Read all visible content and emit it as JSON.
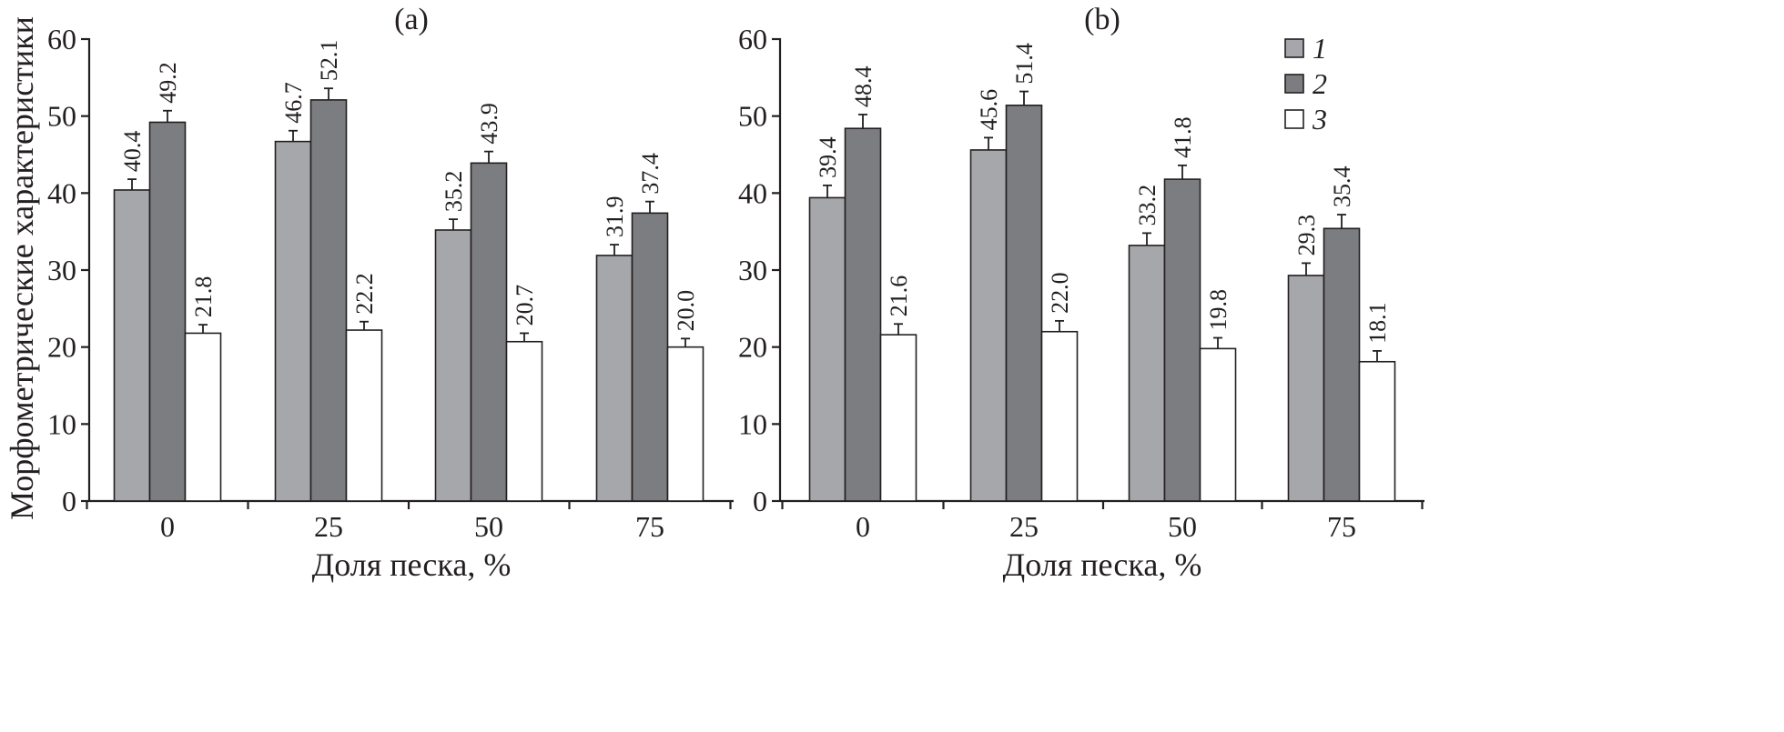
{
  "chart_data": [
    {
      "type": "bar",
      "title": "(a)",
      "xlabel": "Доля песка, %",
      "ylabel": "Морфометрические характеристики",
      "ylim": [
        0,
        60
      ],
      "yticks": [
        0,
        10,
        20,
        30,
        40,
        50,
        60
      ],
      "categories": [
        "0",
        "25",
        "50",
        "75"
      ],
      "series": [
        {
          "name": "1",
          "color": "#a6a7aa",
          "values": [
            40.4,
            46.7,
            35.2,
            31.9
          ],
          "errors": [
            1.4,
            1.4,
            1.4,
            1.4
          ]
        },
        {
          "name": "2",
          "color": "#7c7d80",
          "values": [
            49.2,
            52.1,
            43.9,
            37.4
          ],
          "errors": [
            1.5,
            1.5,
            1.5,
            1.5
          ]
        },
        {
          "name": "3",
          "color": "#ffffff",
          "values": [
            21.8,
            22.2,
            20.7,
            20.0
          ],
          "errors": [
            1.1,
            1.1,
            1.1,
            1.1
          ]
        }
      ],
      "value_labels": [
        [
          "40.4",
          "46.7",
          "35.2",
          "31.9"
        ],
        [
          "49.2",
          "52.1",
          "43.9",
          "37.4"
        ],
        [
          "21.8",
          "22.2",
          "20.7",
          "20.0"
        ]
      ],
      "grid": false,
      "legend": "none"
    },
    {
      "type": "bar",
      "title": "(b)",
      "xlabel": "Доля песка, %",
      "ylabel": "",
      "ylim": [
        0,
        60
      ],
      "yticks": [
        0,
        10,
        20,
        30,
        40,
        50,
        60
      ],
      "categories": [
        "0",
        "25",
        "50",
        "75"
      ],
      "series": [
        {
          "name": "1",
          "color": "#a6a7aa",
          "values": [
            39.4,
            45.6,
            33.2,
            29.3
          ],
          "errors": [
            1.6,
            1.6,
            1.6,
            1.6
          ]
        },
        {
          "name": "2",
          "color": "#7c7d80",
          "values": [
            48.4,
            51.4,
            41.8,
            35.4
          ],
          "errors": [
            1.8,
            1.8,
            1.8,
            1.8
          ]
        },
        {
          "name": "3",
          "color": "#ffffff",
          "values": [
            21.6,
            22.0,
            19.8,
            18.1
          ],
          "errors": [
            1.4,
            1.4,
            1.4,
            1.4
          ]
        }
      ],
      "value_labels": [
        [
          "39.4",
          "45.6",
          "33.2",
          "29.3"
        ],
        [
          "48.4",
          "51.4",
          "41.8",
          "35.4"
        ],
        [
          "21.6",
          "22.0",
          "19.8",
          "18.1"
        ]
      ],
      "grid": false,
      "legend": "top-right"
    }
  ]
}
